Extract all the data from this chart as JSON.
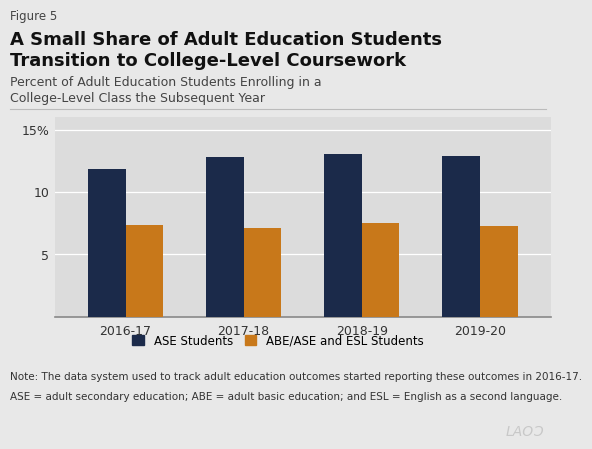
{
  "figure_label": "Figure 5",
  "title_line1": "A Small Share of Adult Education Students",
  "title_line2": "Transition to College-Level Coursework",
  "subtitle_line1": "Percent of Adult Education Students Enrolling in a",
  "subtitle_line2": "College-Level Class the Subsequent Year",
  "categories": [
    "2016-17",
    "2017-18",
    "2018-19",
    "2019-20"
  ],
  "ase_values": [
    11.9,
    12.8,
    13.1,
    12.9
  ],
  "abe_values": [
    7.4,
    7.1,
    7.5,
    7.3
  ],
  "ase_color": "#1B2A4A",
  "abe_color": "#C8781A",
  "background_color": "#E8E8E8",
  "plot_background": "#DCDCDC",
  "ylim": [
    0,
    16
  ],
  "yticks": [
    5,
    10,
    15
  ],
  "ytick_labels": [
    "5",
    "10",
    "15%"
  ],
  "legend_ase": "ASE Students",
  "legend_abe": "ABE/ASE and ESL Students",
  "note1": "Note: The data system used to track adult education outcomes started reporting these outcomes in 2016-17.",
  "note2": "ASE = adult secondary education; ABE = adult basic education; and ESL = English as a second language.",
  "bar_width": 0.32
}
